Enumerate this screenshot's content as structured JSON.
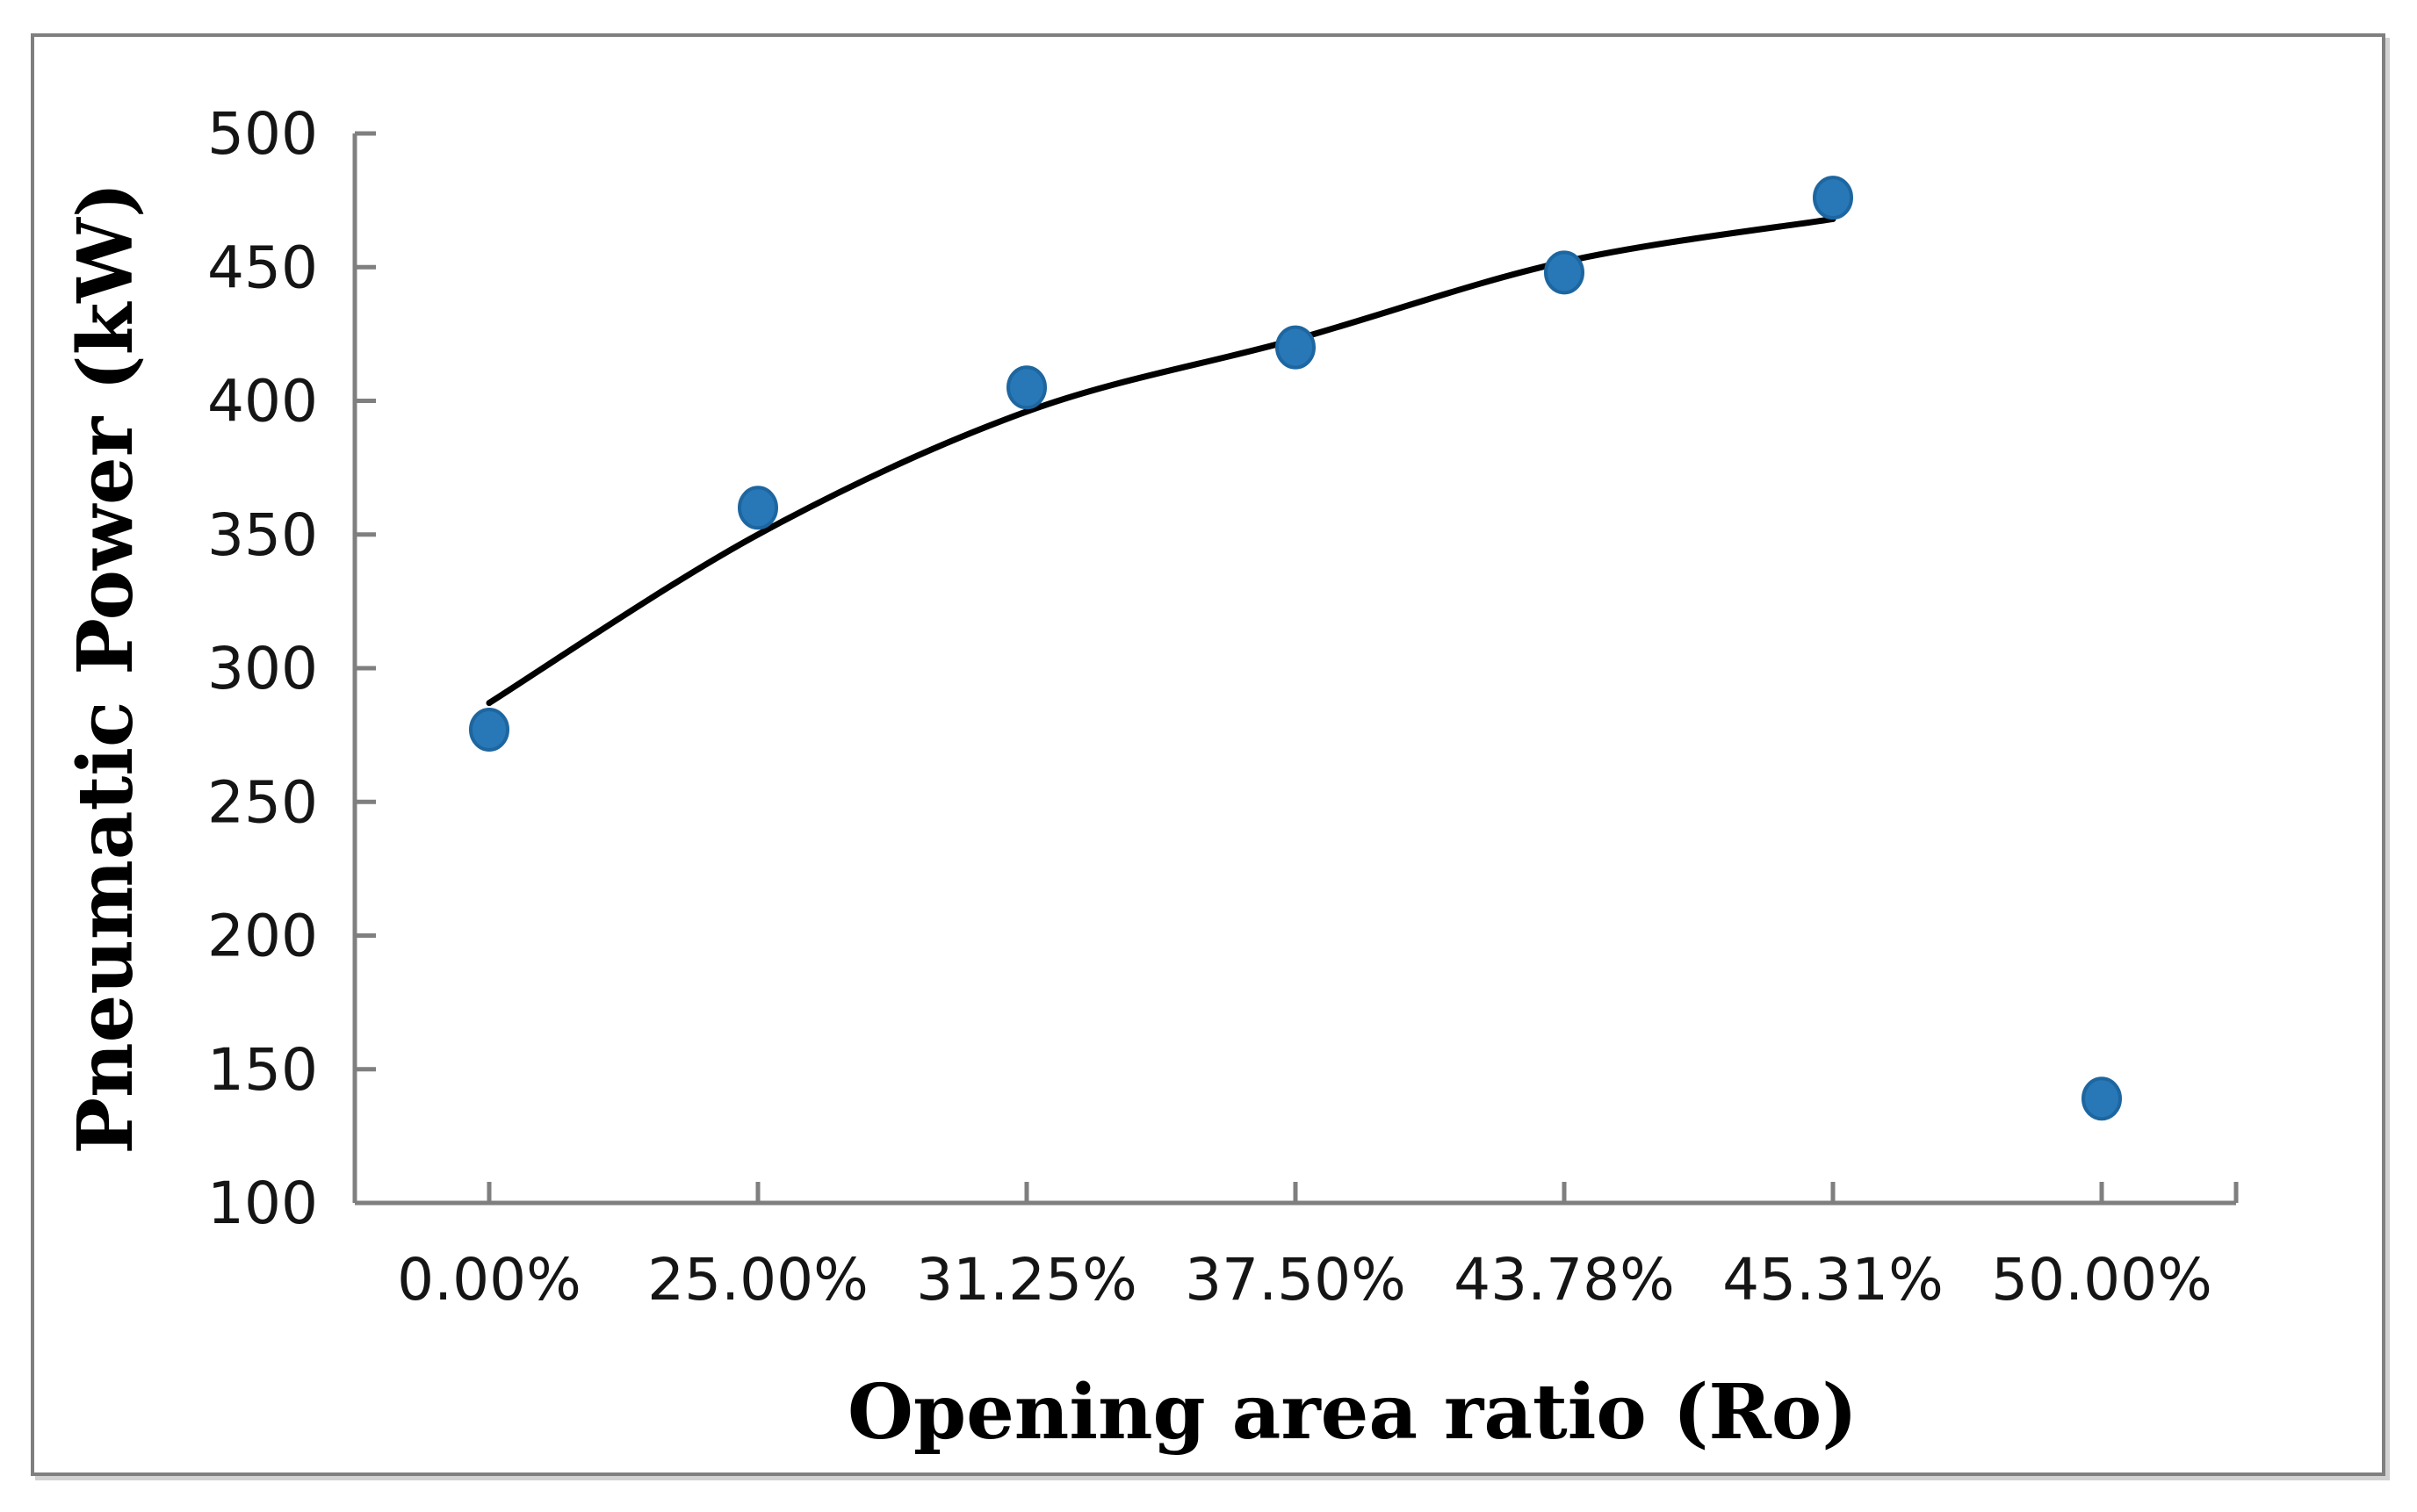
{
  "figure": {
    "kind": "excel-style scatter chart with trendline",
    "background_color": "#ffffff",
    "frame_border_color": "#7f7f7f"
  },
  "chart_data": {
    "type": "scatter",
    "title": "",
    "xlabel": "Opening area ratio (Ro)",
    "ylabel": "Pneumatic Power (kW)",
    "categories": [
      "0.00%",
      "25.00%",
      "31.25%",
      "37.50%",
      "43.78%",
      "45.31%",
      "50.00%"
    ],
    "series": [
      {
        "name": "Pneumatic Power (kW)",
        "values": [
          277,
          360,
          405,
          420,
          448,
          476,
          139
        ]
      }
    ],
    "trendline": {
      "type": "polynomial-fit-curve",
      "note": "black smooth curve fitted through first six points, not drawn to 50.00%",
      "category_indices": [
        0,
        1,
        2,
        3,
        4,
        5
      ],
      "values": [
        287,
        350,
        396,
        423,
        452,
        468
      ]
    },
    "ylim": [
      100,
      500
    ],
    "yticks": [
      500,
      450,
      400,
      350,
      300,
      250,
      200,
      150,
      100
    ],
    "grid": false,
    "legend_position": "none",
    "marker_shape": "circle",
    "marker_color": "#2878b8",
    "marker_edge_color": "#1d66a0",
    "trendline_color": "#000000",
    "axis_color": "#7f7f7f",
    "tick_label_color": "#151515",
    "axis_title_color": "#000000"
  }
}
